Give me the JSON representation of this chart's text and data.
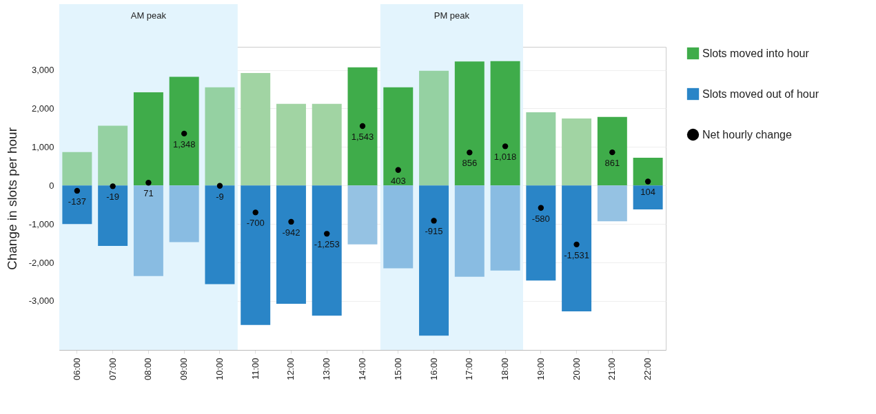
{
  "chart_data": {
    "type": "bar",
    "ylabel": "Change in slots per hour",
    "categories": [
      "06:00",
      "07:00",
      "08:00",
      "09:00",
      "10:00",
      "11:00",
      "12:00",
      "13:00",
      "14:00",
      "15:00",
      "16:00",
      "17:00",
      "18:00",
      "19:00",
      "20:00",
      "21:00",
      "22:00"
    ],
    "series": [
      {
        "name": "Slots moved into hour",
        "color": "#3fac4a",
        "values": [
          870,
          1550,
          2420,
          2820,
          2550,
          2920,
          2120,
          2120,
          3070,
          2550,
          2980,
          3220,
          3230,
          1900,
          1740,
          1780,
          720
        ],
        "colors": [
          "#95d1a2",
          "#95d1a2",
          "#3fac4a",
          "#3fac4a",
          "#95d1a2",
          "#a1d4a3",
          "#a1d4a3",
          "#a1d4a3",
          "#3fac4a",
          "#3fac4a",
          "#95d1a2",
          "#3fac4a",
          "#3fac4a",
          "#95d1a2",
          "#a1d4a3",
          "#3fac4a",
          "#3fac4a"
        ]
      },
      {
        "name": "Slots moved out of hour",
        "color": "#2a85c7",
        "values": [
          -1000,
          -1570,
          -2350,
          -1470,
          -2560,
          -3620,
          -3070,
          -3380,
          -1530,
          -2150,
          -3900,
          -2370,
          -2210,
          -2470,
          -3270,
          -930,
          -620
        ],
        "colors": [
          "#2a85c7",
          "#2a85c7",
          "#89bce2",
          "#89bce2",
          "#2a85c7",
          "#2a85c7",
          "#2a85c7",
          "#2a85c7",
          "#95c2e3",
          "#89bce2",
          "#2a85c7",
          "#89bce2",
          "#89bce2",
          "#2a85c7",
          "#2a85c7",
          "#95c2e3",
          "#2a85c7"
        ]
      },
      {
        "name": "Net hourly change",
        "type": "scatter",
        "color": "#000000",
        "values": [
          -137,
          -19,
          71,
          1348,
          -9,
          -700,
          -942,
          -1253,
          1543,
          403,
          -915,
          856,
          1018,
          -580,
          -1531,
          861,
          104
        ],
        "value_labels": [
          "-137",
          "-19",
          "71",
          "1,348",
          "-9",
          "-700",
          "-942",
          "-1,253",
          "1,543",
          "403",
          "-915",
          "856",
          "1,018",
          "-580",
          "-1,531",
          "861",
          "104"
        ]
      }
    ],
    "ylim": [
      -4270,
      3600
    ],
    "yticks": [
      {
        "value": -3000,
        "label": "-3,000"
      },
      {
        "value": -2000,
        "label": "-2,000"
      },
      {
        "value": -1000,
        "label": "-1,000"
      },
      0,
      {
        "value": 1000,
        "label": "1,000"
      },
      {
        "value": 2000,
        "label": "2,000"
      },
      {
        "value": 3000,
        "label": "3,000"
      }
    ],
    "bands": [
      {
        "axis": "x",
        "from": "06:00",
        "to": "10:00",
        "label": "AM peak",
        "color": "#e3f4fd"
      },
      {
        "axis": "x",
        "from": "15:00",
        "to": "18:00",
        "label": "PM peak",
        "color": "#e3f4fd"
      }
    ],
    "stacked": true,
    "grid": "y",
    "legend": "right",
    "marker": "circle"
  }
}
